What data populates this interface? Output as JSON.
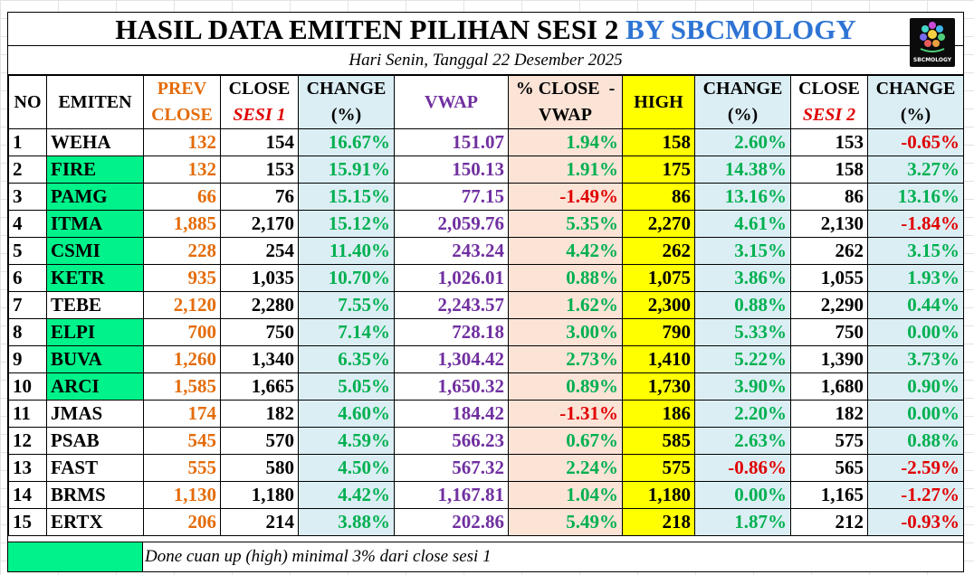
{
  "title": {
    "main": "HASIL DATA EMITEN PILIHAN SESI 2",
    "by": "BY SBCMOLOGY"
  },
  "subtitle": "Hari Senin, Tanggal 22 Desember 2025",
  "logo": {
    "text": "SBCMOLOGY"
  },
  "headers": {
    "no": "NO",
    "emiten": "EMITEN",
    "prev_close": [
      "PREV",
      "CLOSE"
    ],
    "close_sesi1": [
      "CLOSE",
      "SESI 1"
    ],
    "change1": [
      "CHANGE",
      "(%)"
    ],
    "vwap": "VWAP",
    "pct_close_vwap": [
      "% CLOSE  -",
      "VWAP"
    ],
    "high": "HIGH",
    "change2": [
      "CHANGE",
      "(%)"
    ],
    "close_sesi2": [
      "CLOSE",
      "SESI 2"
    ],
    "change3": [
      "CHANGE",
      "(%)"
    ]
  },
  "colors": {
    "orange": "#e46c0a",
    "purple": "#7030a0",
    "green_text": "#00b050",
    "red_text": "#e00000",
    "light_blue": "#dbeef4",
    "peach": "#fbe3d6",
    "yellow": "#ffff00",
    "green_fill": "#00f28a",
    "title_blue": "#2e74d4"
  },
  "rows": [
    {
      "no": "1",
      "emiten": "WEHA",
      "highlight": false,
      "prev": "132",
      "close1": "154",
      "chg1": "16.67%",
      "vwap": "151.07",
      "pcv": "1.94%",
      "high": "158",
      "chg2": "2.60%",
      "close2": "153",
      "chg3": "-0.65%"
    },
    {
      "no": "2",
      "emiten": "FIRE",
      "highlight": true,
      "prev": "132",
      "close1": "153",
      "chg1": "15.91%",
      "vwap": "150.13",
      "pcv": "1.91%",
      "high": "175",
      "chg2": "14.38%",
      "close2": "158",
      "chg3": "3.27%"
    },
    {
      "no": "3",
      "emiten": "PAMG",
      "highlight": true,
      "prev": "66",
      "close1": "76",
      "chg1": "15.15%",
      "vwap": "77.15",
      "pcv": "-1.49%",
      "high": "86",
      "chg2": "13.16%",
      "close2": "86",
      "chg3": "13.16%"
    },
    {
      "no": "4",
      "emiten": "ITMA",
      "highlight": true,
      "prev": "1,885",
      "close1": "2,170",
      "chg1": "15.12%",
      "vwap": "2,059.76",
      "pcv": "5.35%",
      "high": "2,270",
      "chg2": "4.61%",
      "close2": "2,130",
      "chg3": "-1.84%"
    },
    {
      "no": "5",
      "emiten": "CSMI",
      "highlight": true,
      "prev": "228",
      "close1": "254",
      "chg1": "11.40%",
      "vwap": "243.24",
      "pcv": "4.42%",
      "high": "262",
      "chg2": "3.15%",
      "close2": "262",
      "chg3": "3.15%"
    },
    {
      "no": "6",
      "emiten": "KETR",
      "highlight": true,
      "prev": "935",
      "close1": "1,035",
      "chg1": "10.70%",
      "vwap": "1,026.01",
      "pcv": "0.88%",
      "high": "1,075",
      "chg2": "3.86%",
      "close2": "1,055",
      "chg3": "1.93%"
    },
    {
      "no": "7",
      "emiten": "TEBE",
      "highlight": false,
      "prev": "2,120",
      "close1": "2,280",
      "chg1": "7.55%",
      "vwap": "2,243.57",
      "pcv": "1.62%",
      "high": "2,300",
      "chg2": "0.88%",
      "close2": "2,290",
      "chg3": "0.44%"
    },
    {
      "no": "8",
      "emiten": "ELPI",
      "highlight": true,
      "prev": "700",
      "close1": "750",
      "chg1": "7.14%",
      "vwap": "728.18",
      "pcv": "3.00%",
      "high": "790",
      "chg2": "5.33%",
      "close2": "750",
      "chg3": "0.00%"
    },
    {
      "no": "9",
      "emiten": "BUVA",
      "highlight": true,
      "prev": "1,260",
      "close1": "1,340",
      "chg1": "6.35%",
      "vwap": "1,304.42",
      "pcv": "2.73%",
      "high": "1,410",
      "chg2": "5.22%",
      "close2": "1,390",
      "chg3": "3.73%"
    },
    {
      "no": "10",
      "emiten": "ARCI",
      "highlight": true,
      "prev": "1,585",
      "close1": "1,665",
      "chg1": "5.05%",
      "vwap": "1,650.32",
      "pcv": "0.89%",
      "high": "1,730",
      "chg2": "3.90%",
      "close2": "1,680",
      "chg3": "0.90%"
    },
    {
      "no": "11",
      "emiten": "JMAS",
      "highlight": false,
      "prev": "174",
      "close1": "182",
      "chg1": "4.60%",
      "vwap": "184.42",
      "pcv": "-1.31%",
      "high": "186",
      "chg2": "2.20%",
      "close2": "182",
      "chg3": "0.00%"
    },
    {
      "no": "12",
      "emiten": "PSAB",
      "highlight": false,
      "prev": "545",
      "close1": "570",
      "chg1": "4.59%",
      "vwap": "566.23",
      "pcv": "0.67%",
      "high": "585",
      "chg2": "2.63%",
      "close2": "575",
      "chg3": "0.88%"
    },
    {
      "no": "13",
      "emiten": "FAST",
      "highlight": false,
      "prev": "555",
      "close1": "580",
      "chg1": "4.50%",
      "vwap": "567.32",
      "pcv": "2.24%",
      "high": "575",
      "chg2": "-0.86%",
      "close2": "565",
      "chg3": "-2.59%"
    },
    {
      "no": "14",
      "emiten": "BRMS",
      "highlight": false,
      "prev": "1,130",
      "close1": "1,180",
      "chg1": "4.42%",
      "vwap": "1,167.81",
      "pcv": "1.04%",
      "high": "1,180",
      "chg2": "0.00%",
      "close2": "1,165",
      "chg3": "-1.27%"
    },
    {
      "no": "15",
      "emiten": "ERTX",
      "highlight": false,
      "prev": "206",
      "close1": "214",
      "chg1": "3.88%",
      "vwap": "202.86",
      "pcv": "5.49%",
      "high": "218",
      "chg2": "1.87%",
      "close2": "212",
      "chg3": "-0.93%"
    }
  ],
  "legend": {
    "text": "Done cuan up (high) minimal 3% dari close sesi 1"
  }
}
